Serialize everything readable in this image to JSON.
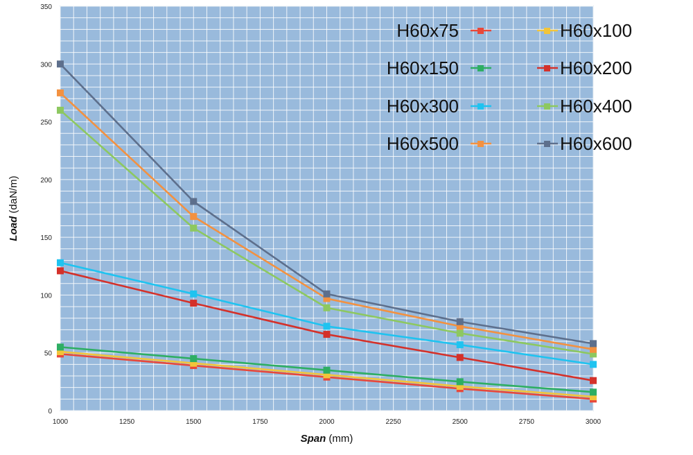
{
  "chart_data": {
    "type": "line",
    "xlabel": {
      "italic": "Span",
      "rest": " (mm)"
    },
    "ylabel": {
      "italic": "Load",
      "rest": " (daN/m)"
    },
    "xlim": [
      1000,
      3000
    ],
    "ylim": [
      0,
      350
    ],
    "xticks": [
      1000,
      1250,
      1500,
      1750,
      2000,
      2250,
      2500,
      2750,
      3000
    ],
    "yticks": [
      0,
      50,
      100,
      150,
      200,
      250,
      300,
      350
    ],
    "grid": true,
    "plot_background": "#99BADC",
    "legend_position": "top-right",
    "x": [
      1000,
      1500,
      2000,
      2500,
      3000
    ],
    "series": [
      {
        "name": "H60x75",
        "color": "#E8483A",
        "values": [
          49,
          39,
          29,
          19,
          10
        ]
      },
      {
        "name": "H60x100",
        "color": "#F2C53A",
        "values": [
          51,
          41,
          31,
          21,
          12
        ]
      },
      {
        "name": "H60x150",
        "color": "#2EAE63",
        "values": [
          55,
          45,
          35,
          25,
          16
        ]
      },
      {
        "name": "H60x200",
        "color": "#D4312A",
        "values": [
          121,
          93,
          66,
          46,
          26
        ]
      },
      {
        "name": "H60x300",
        "color": "#1FC3F0",
        "values": [
          128,
          101,
          73,
          57,
          40
        ]
      },
      {
        "name": "H60x400",
        "color": "#8DC860",
        "values": [
          260,
          158,
          89,
          67,
          49
        ]
      },
      {
        "name": "H60x500",
        "color": "#F39140",
        "values": [
          275,
          168,
          97,
          73,
          53
        ]
      },
      {
        "name": "H60x600",
        "color": "#5D6F8C",
        "values": [
          300,
          181,
          101,
          77,
          58
        ]
      }
    ]
  }
}
